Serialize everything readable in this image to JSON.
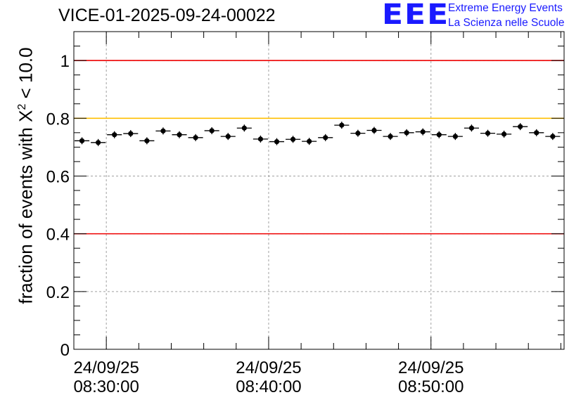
{
  "header": {
    "title": "VICE-01-2025-09-24-00022",
    "logo_text": "EEE",
    "logo_line1": "Extreme Energy Events",
    "logo_line2": "La Scienza nelle Scuole"
  },
  "colors": {
    "red_line": "#ee0000",
    "yellow_line": "#ffbf00",
    "logo": "#1a1aff",
    "points": "#000000",
    "grid": "#a0a0a0"
  },
  "chart_data": {
    "type": "scatter",
    "title": "VICE-01-2025-09-24-00022",
    "ylabel_prefix": "fraction of events with X",
    "ylabel_sup": "2",
    "ylabel_suffix": " < 10.0",
    "xlabel": "",
    "ylim": [
      0,
      1.1
    ],
    "yticks": [
      0,
      0.2,
      0.4,
      0.6,
      0.8,
      1
    ],
    "ytick_labels": [
      "0",
      "0.2",
      "0.4",
      "0.6",
      "0.8",
      "1"
    ],
    "x_unit": "minutes since 08:28:00",
    "xlim": [
      0,
      30.2
    ],
    "xticks": [
      2,
      12,
      22
    ],
    "xtick_labels": [
      [
        "24/09/25",
        "08:30:00"
      ],
      [
        "24/09/25",
        "08:40:00"
      ],
      [
        "24/09/25",
        "08:50:00"
      ]
    ],
    "reference_lines": [
      {
        "y": 1.0,
        "color": "red"
      },
      {
        "y": 0.8,
        "color": "yellow"
      },
      {
        "y": 0.4,
        "color": "red"
      }
    ],
    "bin_width": 1,
    "series": [
      {
        "name": "fraction",
        "x": [
          0.5,
          1.5,
          2.5,
          3.5,
          4.5,
          5.5,
          6.5,
          7.5,
          8.5,
          9.5,
          10.5,
          11.5,
          12.5,
          13.5,
          14.5,
          15.5,
          16.5,
          17.5,
          18.5,
          19.5,
          20.5,
          21.5,
          22.5,
          23.5,
          24.5,
          25.5,
          26.5,
          27.5,
          28.5,
          29.5
        ],
        "y": [
          0.722,
          0.716,
          0.743,
          0.747,
          0.722,
          0.756,
          0.743,
          0.733,
          0.757,
          0.737,
          0.766,
          0.728,
          0.719,
          0.727,
          0.72,
          0.733,
          0.776,
          0.748,
          0.758,
          0.737,
          0.75,
          0.753,
          0.743,
          0.737,
          0.766,
          0.748,
          0.745,
          0.771,
          0.75,
          0.737
        ]
      }
    ]
  }
}
